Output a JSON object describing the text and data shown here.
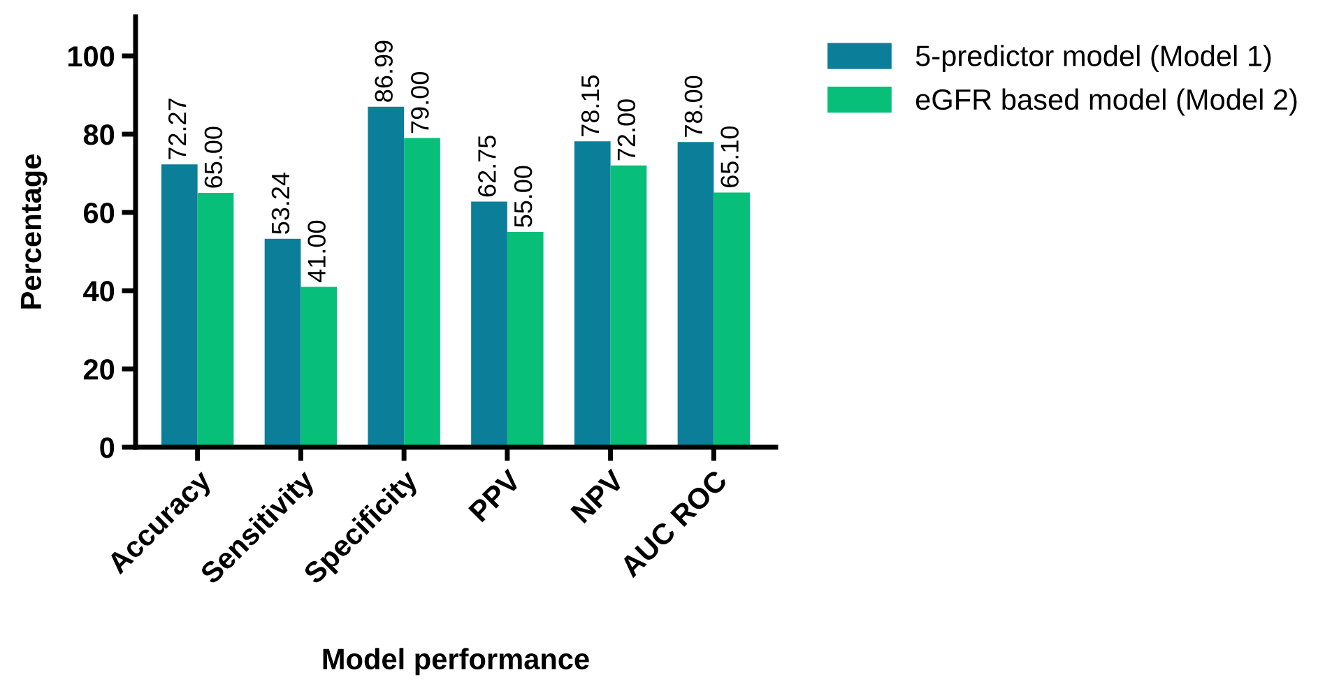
{
  "chart_data": {
    "type": "bar",
    "xlabel": "Model performance",
    "ylabel": "Percentage",
    "categories": [
      "Accuracy",
      "Sensitivity",
      "Specificity",
      "PPV",
      "NPV",
      "AUC ROC"
    ],
    "series": [
      {
        "name": "5-predictor model (Model 1)",
        "color": "#0b7e99",
        "values": [
          72.27,
          53.24,
          86.99,
          62.75,
          78.15,
          78.0
        ]
      },
      {
        "name": "eGFR based model (Model 2)",
        "color": "#08bf79",
        "values": [
          65.0,
          41.0,
          79.0,
          55.0,
          72.0,
          65.1
        ]
      }
    ],
    "value_labels": [
      [
        "72.27",
        "53.24",
        "86.99",
        "62.75",
        "78.15",
        "78.00"
      ],
      [
        "65.00",
        "41.00",
        "79.00",
        "55.00",
        "72.00",
        "65.10"
      ]
    ],
    "ylim": [
      0,
      110
    ],
    "yticks": [
      0,
      20,
      40,
      60,
      80,
      100
    ],
    "grid": false,
    "legend": "top right"
  }
}
